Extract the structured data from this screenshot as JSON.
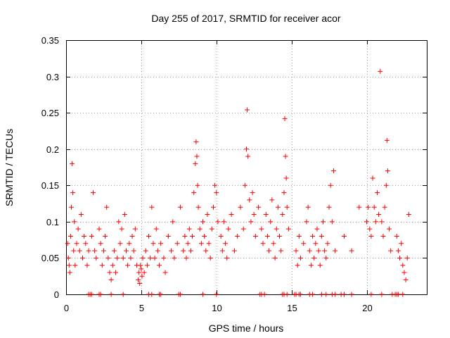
{
  "chart_data": {
    "type": "scatter",
    "title": "Day 255 of 2017, SRMTID for receiver acor",
    "xlabel": "GPS time / hours",
    "ylabel": "SRMTID / TECUs",
    "xlim": [
      0,
      24
    ],
    "ylim": [
      0,
      0.35
    ],
    "x_ticks": [
      0,
      5,
      10,
      15,
      20
    ],
    "x_tick_labels": [
      "0",
      "5",
      "10",
      "15",
      "20"
    ],
    "y_ticks": [
      0,
      0.05,
      0.1,
      0.15,
      0.2,
      0.25,
      0.3,
      0.35
    ],
    "y_tick_labels": [
      "0",
      "0.05",
      "0.1",
      "0.15",
      "0.2",
      "0.25",
      "0.3",
      "0.35"
    ],
    "grid": true,
    "marker": "+",
    "color": "#ff0000",
    "series": [
      {
        "name": "SRMTID",
        "points": [
          [
            0.1,
            0.07
          ],
          [
            0.15,
            0.05
          ],
          [
            0.2,
            0.04
          ],
          [
            0.25,
            0.03
          ],
          [
            0.3,
            0.08
          ],
          [
            0.35,
            0.12
          ],
          [
            0.4,
            0.18
          ],
          [
            0.45,
            0.14
          ],
          [
            0.5,
            0.06
          ],
          [
            0.55,
            0.1
          ],
          [
            0.6,
            0.04
          ],
          [
            0.7,
            0.07
          ],
          [
            0.8,
            0.09
          ],
          [
            0.9,
            0.06
          ],
          [
            1.0,
            0.11
          ],
          [
            1.1,
            0.05
          ],
          [
            1.2,
            0.08
          ],
          [
            1.3,
            0.07
          ],
          [
            1.4,
            0.04
          ],
          [
            1.5,
            0.06
          ],
          [
            1.7,
            0.08
          ],
          [
            1.8,
            0.14
          ],
          [
            1.9,
            0.06
          ],
          [
            2.0,
            0.05
          ],
          [
            2.2,
            0.09
          ],
          [
            2.3,
            0.07
          ],
          [
            2.4,
            0.04
          ],
          [
            2.5,
            0.06
          ],
          [
            2.6,
            0.08
          ],
          [
            2.7,
            0.12
          ],
          [
            2.8,
            0.05
          ],
          [
            2.9,
            0.03
          ],
          [
            3.0,
            0.02
          ],
          [
            3.1,
            0.04
          ],
          [
            3.2,
            0.06
          ],
          [
            3.3,
            0.03
          ],
          [
            3.4,
            0.05
          ],
          [
            3.5,
            0.1
          ],
          [
            3.6,
            0.07
          ],
          [
            3.7,
            0.09
          ],
          [
            3.8,
            0.05
          ],
          [
            3.9,
            0.11
          ],
          [
            4.0,
            0.06
          ],
          [
            4.1,
            0.04
          ],
          [
            4.2,
            0.07
          ],
          [
            4.3,
            0.05
          ],
          [
            4.4,
            0.08
          ],
          [
            4.5,
            0.06
          ],
          [
            4.6,
            0.09
          ],
          [
            4.7,
            0.04
          ],
          [
            4.8,
            0.02
          ],
          [
            4.85,
            0.03
          ],
          [
            4.9,
            0.015
          ],
          [
            4.95,
            0.04
          ],
          [
            5.0,
            0.035
          ],
          [
            5.05,
            0.025
          ],
          [
            5.1,
            0.05
          ],
          [
            5.2,
            0.03
          ],
          [
            5.3,
            0.06
          ],
          [
            5.4,
            0.04
          ],
          [
            5.5,
            0.08
          ],
          [
            5.6,
            0.05
          ],
          [
            5.7,
            0.12
          ],
          [
            5.8,
            0.07
          ],
          [
            5.9,
            0.05
          ],
          [
            6.0,
            0.09
          ],
          [
            6.1,
            0.06
          ],
          [
            6.2,
            0.04
          ],
          [
            6.3,
            0.07
          ],
          [
            6.5,
            0.05
          ],
          [
            6.6,
            0.03
          ],
          [
            6.8,
            0.08
          ],
          [
            7.0,
            0.06
          ],
          [
            7.1,
            0.1
          ],
          [
            7.2,
            0.05
          ],
          [
            7.4,
            0.07
          ],
          [
            7.6,
            0.12
          ],
          [
            7.8,
            0.06
          ],
          [
            7.9,
            0.08
          ],
          [
            8.0,
            0.05
          ],
          [
            8.1,
            0.07
          ],
          [
            8.2,
            0.09
          ],
          [
            8.3,
            0.06
          ],
          [
            8.4,
            0.08
          ],
          [
            8.5,
            0.14
          ],
          [
            8.6,
            0.18
          ],
          [
            8.65,
            0.21
          ],
          [
            8.7,
            0.19
          ],
          [
            8.75,
            0.15
          ],
          [
            8.8,
            0.12
          ],
          [
            8.9,
            0.09
          ],
          [
            9.0,
            0.07
          ],
          [
            9.1,
            0.1
          ],
          [
            9.2,
            0.08
          ],
          [
            9.3,
            0.06
          ],
          [
            9.4,
            0.11
          ],
          [
            9.5,
            0.07
          ],
          [
            9.6,
            0.05
          ],
          [
            9.7,
            0.09
          ],
          [
            9.8,
            0.12
          ],
          [
            9.9,
            0.15
          ],
          [
            10.0,
            0.14
          ],
          [
            10.1,
            0.1
          ],
          [
            10.3,
            0.08
          ],
          [
            10.4,
            0.06
          ],
          [
            10.5,
            0.1
          ],
          [
            10.6,
            0.07
          ],
          [
            10.7,
            0.05
          ],
          [
            10.8,
            0.09
          ],
          [
            11.0,
            0.11
          ],
          [
            11.2,
            0.06
          ],
          [
            11.4,
            0.08
          ],
          [
            11.6,
            0.12
          ],
          [
            11.8,
            0.09
          ],
          [
            11.9,
            0.15
          ],
          [
            12.0,
            0.2
          ],
          [
            12.05,
            0.254
          ],
          [
            12.1,
            0.19
          ],
          [
            12.2,
            0.13
          ],
          [
            12.3,
            0.1
          ],
          [
            12.4,
            0.14
          ],
          [
            12.5,
            0.11
          ],
          [
            12.6,
            0.08
          ],
          [
            12.8,
            0.12
          ],
          [
            13.0,
            0.09
          ],
          [
            13.1,
            0.07
          ],
          [
            13.3,
            0.11
          ],
          [
            13.4,
            0.08
          ],
          [
            13.5,
            0.06
          ],
          [
            13.6,
            0.1
          ],
          [
            13.7,
            0.13
          ],
          [
            13.8,
            0.07
          ],
          [
            13.9,
            0.05
          ],
          [
            14.0,
            0.09
          ],
          [
            14.1,
            0.12
          ],
          [
            14.2,
            0.08
          ],
          [
            14.3,
            0.06
          ],
          [
            14.4,
            0.11
          ],
          [
            14.5,
            0.14
          ],
          [
            14.55,
            0.242
          ],
          [
            14.6,
            0.19
          ],
          [
            14.65,
            0.16
          ],
          [
            14.7,
            0.12
          ],
          [
            14.8,
            0.09
          ],
          [
            15.3,
            0.06
          ],
          [
            15.4,
            0.04
          ],
          [
            15.5,
            0.08
          ],
          [
            15.6,
            0.05
          ],
          [
            15.8,
            0.07
          ],
          [
            16.0,
            0.1
          ],
          [
            16.1,
            0.12
          ],
          [
            16.2,
            0.06
          ],
          [
            16.3,
            0.04
          ],
          [
            16.4,
            0.08
          ],
          [
            16.5,
            0.05
          ],
          [
            16.6,
            0.07
          ],
          [
            16.7,
            0.09
          ],
          [
            16.8,
            0.06
          ],
          [
            16.9,
            0.04
          ],
          [
            17.0,
            0.08
          ],
          [
            17.1,
            0.1
          ],
          [
            17.2,
            0.06
          ],
          [
            17.3,
            0.05
          ],
          [
            17.4,
            0.07
          ],
          [
            17.5,
            0.12
          ],
          [
            17.6,
            0.15
          ],
          [
            17.7,
            0.1
          ],
          [
            17.8,
            0.17
          ],
          [
            17.9,
            0.06
          ],
          [
            18.5,
            0.08
          ],
          [
            19.0,
            0.06
          ],
          [
            19.5,
            0.12
          ],
          [
            20.0,
            0.1
          ],
          [
            20.1,
            0.12
          ],
          [
            20.2,
            0.09
          ],
          [
            20.3,
            0.08
          ],
          [
            20.4,
            0.16
          ],
          [
            20.5,
            0.12
          ],
          [
            20.6,
            0.1
          ],
          [
            20.7,
            0.14
          ],
          [
            20.8,
            0.11
          ],
          [
            20.9,
            0.307
          ],
          [
            21.0,
            0.1
          ],
          [
            21.1,
            0.08
          ],
          [
            21.2,
            0.12
          ],
          [
            21.3,
            0.15
          ],
          [
            21.35,
            0.212
          ],
          [
            21.4,
            0.17
          ],
          [
            21.5,
            0.09
          ],
          [
            21.6,
            0.06
          ],
          [
            22.0,
            0.08
          ],
          [
            22.1,
            0.06
          ],
          [
            22.2,
            0.05
          ],
          [
            22.3,
            0.07
          ],
          [
            22.4,
            0.04
          ],
          [
            22.5,
            0.03
          ],
          [
            22.6,
            0.02
          ],
          [
            22.7,
            0.05
          ],
          [
            22.8,
            0.11
          ]
        ]
      }
    ],
    "zero_markers_x": [
      1.5,
      1.6,
      1.7,
      2.2,
      2.3,
      3.0,
      3.8,
      5.5,
      5.7,
      6.2,
      6.3,
      7.5,
      7.6,
      9.1,
      10.0,
      12.9,
      13.0,
      13.2,
      14.4,
      14.5,
      14.7,
      15.2,
      15.3,
      15.5,
      15.6,
      16.2,
      16.4,
      17.0,
      17.3,
      17.7,
      17.9,
      18.3,
      18.5,
      19.0,
      20.3,
      21.0,
      21.7,
      21.9,
      22.0,
      22.1,
      22.4
    ]
  }
}
